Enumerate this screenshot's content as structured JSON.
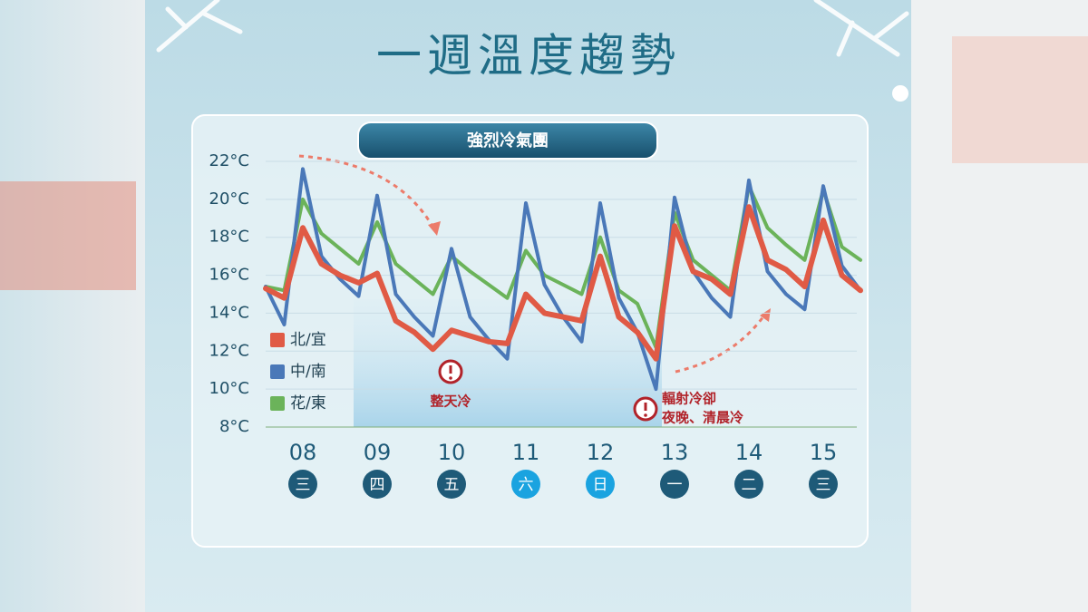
{
  "chart_data": {
    "type": "line",
    "title": "一週溫度趨勢",
    "banner": "強烈冷氣團",
    "x": [
      7.5,
      7.75,
      8,
      8.25,
      8.5,
      8.75,
      9,
      9.25,
      9.5,
      9.75,
      10,
      10.25,
      10.5,
      10.75,
      11,
      11.25,
      11.5,
      11.75,
      12,
      12.25,
      12.5,
      12.75,
      13,
      13.25,
      13.5,
      13.75,
      14,
      14.25,
      14.5,
      14.75,
      15,
      15.25,
      15.5
    ],
    "series": [
      {
        "name": "北/宜",
        "color": "#e05a45",
        "values": [
          15.3,
          14.8,
          18.5,
          16.6,
          16.0,
          15.6,
          16.1,
          13.6,
          13.0,
          12.1,
          13.1,
          12.8,
          12.5,
          12.4,
          15.0,
          14.0,
          13.8,
          13.6,
          17.0,
          13.8,
          13.0,
          11.6,
          18.6,
          16.2,
          15.8,
          15.0,
          19.6,
          16.8,
          16.3,
          15.4,
          18.9,
          16.0,
          15.2
        ]
      },
      {
        "name": "中/南",
        "color": "#4a78b8",
        "values": [
          15.4,
          13.4,
          21.6,
          17.0,
          15.8,
          14.9,
          20.2,
          15.0,
          13.8,
          12.8,
          17.4,
          13.8,
          12.6,
          11.6,
          19.8,
          15.5,
          13.8,
          12.5,
          19.8,
          14.8,
          13.0,
          10.0,
          20.1,
          16.2,
          14.8,
          13.8,
          21.0,
          16.2,
          15.0,
          14.2,
          20.7,
          16.5,
          15.2
        ]
      },
      {
        "name": "花/東",
        "color": "#6bb35a",
        "values": [
          15.4,
          15.2,
          20.0,
          18.2,
          17.4,
          16.6,
          18.8,
          16.6,
          15.8,
          15.0,
          17.0,
          16.2,
          15.5,
          14.8,
          17.3,
          16.0,
          15.5,
          15.0,
          18.0,
          15.2,
          14.5,
          12.2,
          19.3,
          16.8,
          16.0,
          15.2,
          20.7,
          18.5,
          17.6,
          16.8,
          20.5,
          17.5,
          16.8
        ]
      }
    ],
    "xlim": [
      7.5,
      15.5
    ],
    "xticks": [
      {
        "value": 8,
        "label": "08"
      },
      {
        "value": 9,
        "label": "09"
      },
      10,
      11,
      12,
      13,
      14,
      15
    ],
    "weekdays": [
      "三",
      "四",
      "五",
      "六",
      "日",
      "一",
      "二",
      "三"
    ],
    "weekday_colors": [
      "#1e5a78",
      "#1e5a78",
      "#1e5a78",
      "#1aa3e0",
      "#1aa3e0",
      "#1e5a78",
      "#1e5a78",
      "#1e5a78"
    ],
    "ylim": [
      8,
      22
    ],
    "yticks": [
      {
        "value": 8,
        "label": "8°C"
      },
      {
        "value": 10,
        "label": "10°C"
      },
      {
        "value": 12,
        "label": "12°C"
      },
      {
        "value": 14,
        "label": "14°C"
      },
      {
        "value": 16,
        "label": "16°C"
      },
      {
        "value": 18,
        "label": "18°C"
      },
      {
        "value": 20,
        "label": "20°C"
      },
      {
        "value": 22,
        "label": "22°C"
      }
    ],
    "grid": true,
    "annotations": [
      "整天冷",
      "輻射冷卻",
      "夜晚、清晨冷"
    ]
  }
}
